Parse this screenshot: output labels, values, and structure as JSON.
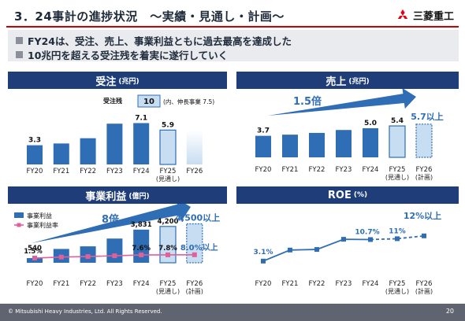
{
  "page": {
    "title": "3．24事計の進捗状況　～実績・見通し・計画～",
    "logo": "三菱重工",
    "bullets": [
      "FY24は、受注、売上、事業利益ともに過去最高を達成した",
      "10兆円を超える受注残を着実に遂行していく"
    ],
    "copyright": "© Mitsubishi Heavy Industries, Ltd.  All Rights Reserved.",
    "page_number": "20",
    "colors": {
      "bar": "#2f6db5",
      "forecast_fill": "#c7ddf2",
      "head": "#1f3d78",
      "arrow": "#2f6db5",
      "accent_text": "#2f6db5",
      "line_pink": "#e0609a",
      "title_rule": "#cc0000"
    }
  },
  "chart_data": [
    {
      "type": "bar",
      "title": "受注",
      "unit": "(兆円)",
      "categories": [
        "FY20",
        "FY21",
        "FY22",
        "FY23",
        "FY24",
        "FY25",
        "FY26"
      ],
      "category_sublabels": [
        "",
        "",
        "",
        "",
        "",
        "(見通し)",
        ""
      ],
      "values": [
        3.3,
        3.6,
        4.5,
        7.0,
        7.1,
        5.9,
        5.9
      ],
      "data_labels": [
        "3.3",
        "",
        "",
        "",
        "7.1",
        "5.9",
        ""
      ],
      "backlog_label": "受注残",
      "backlog_value": "10",
      "backlog_note": "(内、伸長事業 7.5)"
    },
    {
      "type": "bar",
      "title": "売上",
      "unit": "(兆円)",
      "categories": [
        "FY20",
        "FY21",
        "FY22",
        "FY23",
        "FY24",
        "FY25",
        "FY26"
      ],
      "category_sublabels": [
        "",
        "",
        "",
        "",
        "",
        "(見通し)",
        "(計画)"
      ],
      "values": [
        3.7,
        3.9,
        4.2,
        4.7,
        5.0,
        5.4,
        5.7
      ],
      "data_labels": [
        "3.7",
        "",
        "",
        "",
        "5.0",
        "5.4",
        "5.7以上"
      ],
      "arrow_label": "1.5倍"
    },
    {
      "type": "bar",
      "title": "事業利益",
      "unit": "(億円)",
      "categories": [
        "FY20",
        "FY21",
        "FY22",
        "FY23",
        "FY24",
        "FY25",
        "FY26"
      ],
      "category_sublabels": [
        "",
        "",
        "",
        "",
        "",
        "(見通し)",
        "(計画)"
      ],
      "legend": [
        "事業利益",
        "事業利益率"
      ],
      "series": [
        {
          "name": "事業利益",
          "values": [
            540,
            1600,
            1900,
            2800,
            3831,
            4200,
            4500
          ],
          "data_labels": [
            "540",
            "",
            "",
            "",
            "3,831",
            "4,200",
            "4,500以上"
          ]
        },
        {
          "name": "事業利益率",
          "values": [
            1.5,
            3.5,
            4.5,
            6.0,
            7.6,
            7.8,
            8.0
          ],
          "data_labels": [
            "1.5%",
            "",
            "",
            "",
            "7.6%",
            "7.8%",
            "8.0%以上"
          ]
        }
      ],
      "arrow_label": "8倍"
    },
    {
      "type": "line",
      "title": "ROE",
      "unit": "(%)",
      "categories": [
        "FY20",
        "FY21",
        "FY22",
        "FY23",
        "FY24",
        "FY25",
        "FY26"
      ],
      "category_sublabels": [
        "",
        "",
        "",
        "",
        "",
        "(見通し)",
        "(計画)"
      ],
      "values": [
        3.1,
        7.0,
        7.2,
        10.8,
        10.7,
        11.0,
        12.0
      ],
      "data_labels": [
        "3.1%",
        "",
        "",
        "",
        "10.7%",
        "11%",
        "12%以上"
      ]
    }
  ]
}
